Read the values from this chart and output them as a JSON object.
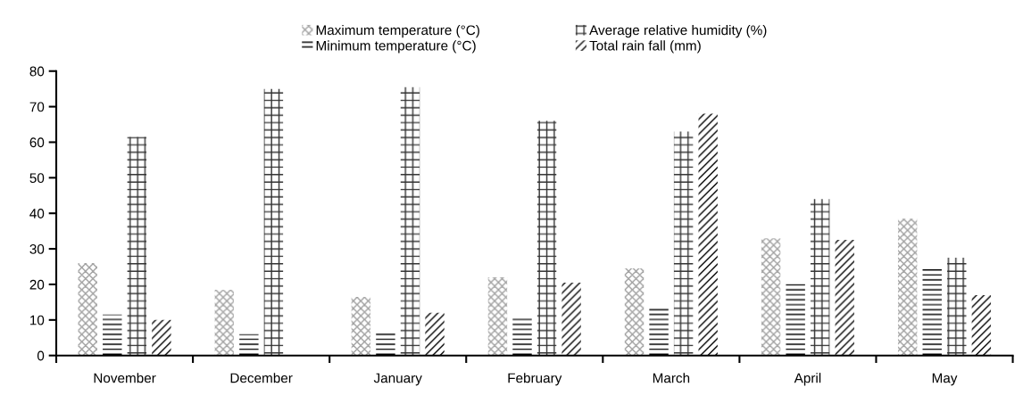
{
  "chart_data": {
    "type": "bar",
    "categories": [
      "November",
      "December",
      "January",
      "February",
      "March",
      "April",
      "May"
    ],
    "series": [
      {
        "name": "Maximum temperature (°C)",
        "color": "#a0a0a0",
        "values": [
          26,
          18.5,
          16.5,
          22,
          24.5,
          33,
          38.5
        ]
      },
      {
        "name": "Minimum temperature (°C)",
        "color": "#000000",
        "values": [
          11.5,
          6,
          6.5,
          11,
          13.5,
          20.5,
          25
        ]
      },
      {
        "name": "Average relative humidity (%)",
        "color": "#303030",
        "values": [
          61.5,
          75,
          75.5,
          66,
          63,
          44,
          27.5
        ]
      },
      {
        "name": "Total rain fall (mm)",
        "color": "#000000",
        "values": [
          10,
          null,
          12,
          20.5,
          68,
          32.5,
          17
        ]
      }
    ],
    "ylim": [
      0,
      80
    ],
    "yticks": [
      0,
      10,
      20,
      30,
      40,
      50,
      60,
      70,
      80
    ],
    "grid": false,
    "legend": "top"
  }
}
